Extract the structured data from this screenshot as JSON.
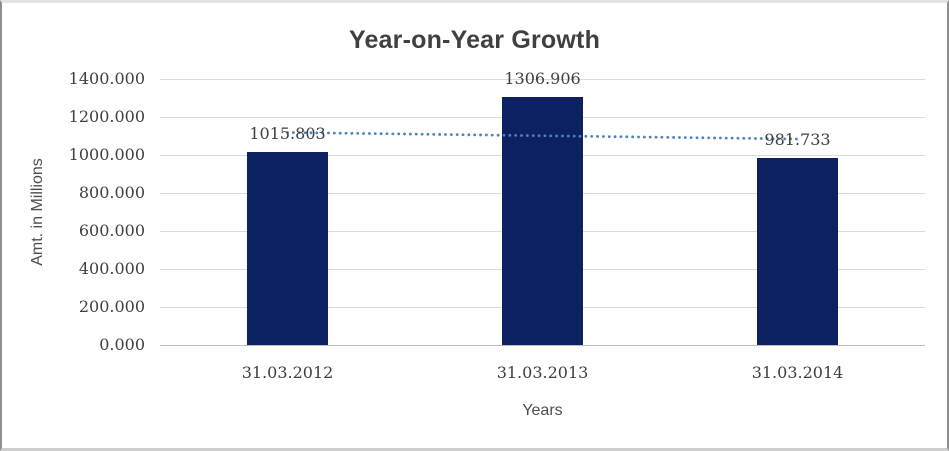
{
  "chart_data": {
    "type": "bar",
    "title": "Year-on-Year Growth",
    "xlabel": "Years",
    "ylabel": "Amt. in Millions",
    "categories": [
      "31.03.2012",
      "31.03.2013",
      "31.03.2014"
    ],
    "values": [
      1015.803,
      1306.906,
      981.733
    ],
    "data_labels": [
      "1015.803",
      "1306.906",
      "981.733"
    ],
    "ylim": [
      0,
      1400
    ],
    "ytick_step": 200,
    "ytick_labels": [
      "0.000",
      "200.000",
      "400.000",
      "600.000",
      "800.000",
      "1000.000",
      "1200.000",
      "1400.000"
    ],
    "grid": true,
    "legend": "none",
    "trendline": {
      "type": "linear",
      "style": "dotted"
    },
    "colors": {
      "bar": "#0b2161",
      "trendline": "#4f81bd",
      "gridline": "#d9d9d9",
      "axis_line": "#bfbfbf",
      "title_text": "#404040",
      "label_text": "#3f3f3f",
      "axis_title_text": "#4d4d4d"
    }
  }
}
